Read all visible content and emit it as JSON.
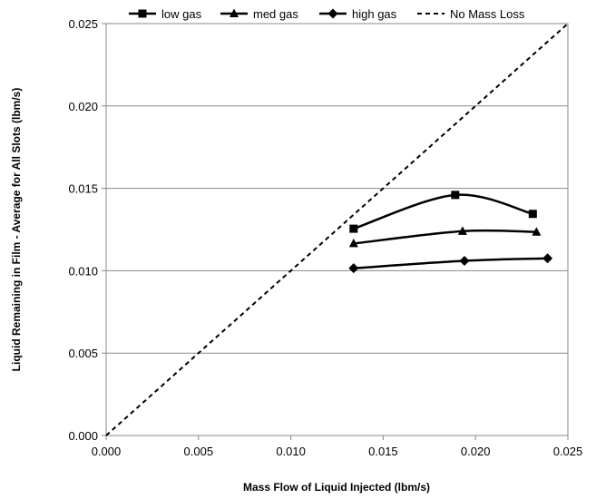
{
  "chart_data": {
    "type": "line",
    "title": "",
    "xlabel": "Mass Flow of Liquid Injected (lbm/s)",
    "ylabel": "Liquid Remaining in Film - Average for All Slots (lbm/s)",
    "xlim": [
      0.0,
      0.025
    ],
    "ylim": [
      0.0,
      0.025
    ],
    "x_ticks": [
      "0.000",
      "0.005",
      "0.010",
      "0.015",
      "0.020",
      "0.025"
    ],
    "y_ticks": [
      "0.000",
      "0.005",
      "0.010",
      "0.015",
      "0.020",
      "0.025"
    ],
    "grid": "horizontal",
    "legend_position": "top",
    "series": [
      {
        "name": "low gas",
        "marker": "square",
        "color": "#000000",
        "smooth": true,
        "x": [
          0.0134,
          0.0189,
          0.0231
        ],
        "y": [
          0.01255,
          0.0146,
          0.01345
        ]
      },
      {
        "name": "med gas",
        "marker": "triangle",
        "color": "#000000",
        "smooth": true,
        "x": [
          0.0134,
          0.0193,
          0.0233
        ],
        "y": [
          0.01165,
          0.0124,
          0.01235
        ]
      },
      {
        "name": "high gas",
        "marker": "diamond",
        "color": "#000000",
        "smooth": true,
        "x": [
          0.0134,
          0.0194,
          0.0239
        ],
        "y": [
          0.01015,
          0.0106,
          0.01075
        ]
      },
      {
        "name": "No Mass Loss",
        "marker": "none",
        "color": "#000000",
        "dashed": true,
        "x": [
          0.0,
          0.025
        ],
        "y": [
          0.0,
          0.025
        ]
      }
    ]
  }
}
